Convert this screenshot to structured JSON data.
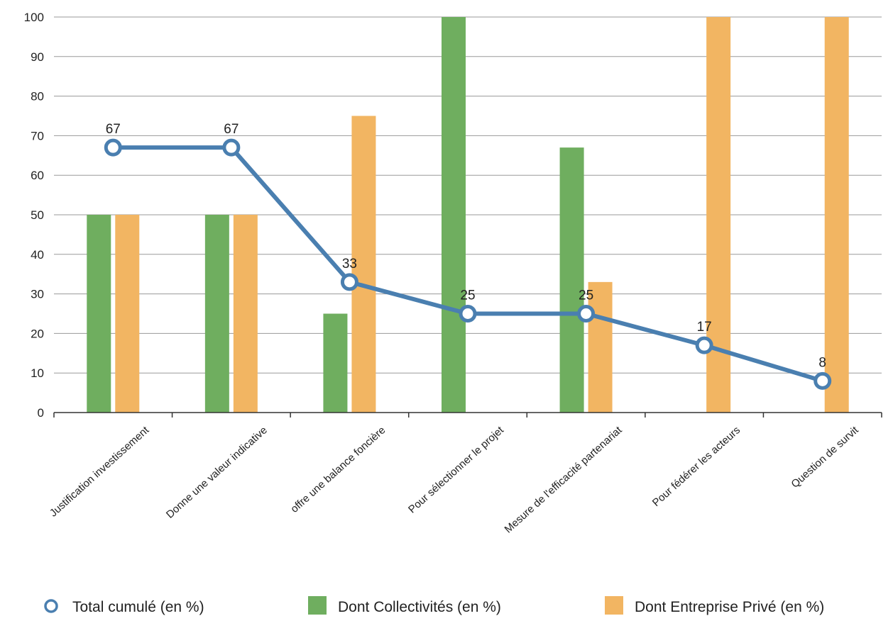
{
  "chart_data": {
    "type": "bar",
    "categories": [
      "Justification investissement",
      "Donne une valeur indicative",
      "offre une balance foncière",
      "Pour sélectionner le projet",
      "Mesure de l'efficacité partenariat",
      "Pour fédérer les acteurs",
      "Question de survit"
    ],
    "series": [
      {
        "name": "Total cumulé (en %)",
        "type": "line",
        "color": "#4a7fb0",
        "values": [
          67,
          67,
          33,
          25,
          25,
          17,
          8
        ]
      },
      {
        "name": "Dont Collectivités (en %)",
        "type": "bar",
        "color": "#6fae5f",
        "values": [
          50,
          50,
          25,
          100,
          67,
          0,
          0
        ]
      },
      {
        "name": "Dont Entreprise Privé (en %)",
        "type": "bar",
        "color": "#f2b562",
        "values": [
          50,
          50,
          75,
          0,
          33,
          100,
          100
        ]
      }
    ],
    "title": "",
    "xlabel": "",
    "ylabel": "",
    "ylim": [
      0,
      100
    ],
    "yticks": [
      0,
      10,
      20,
      30,
      40,
      50,
      60,
      70,
      80,
      90,
      100
    ],
    "grid": true,
    "legend": "bottom",
    "data_labels": "line series only"
  }
}
